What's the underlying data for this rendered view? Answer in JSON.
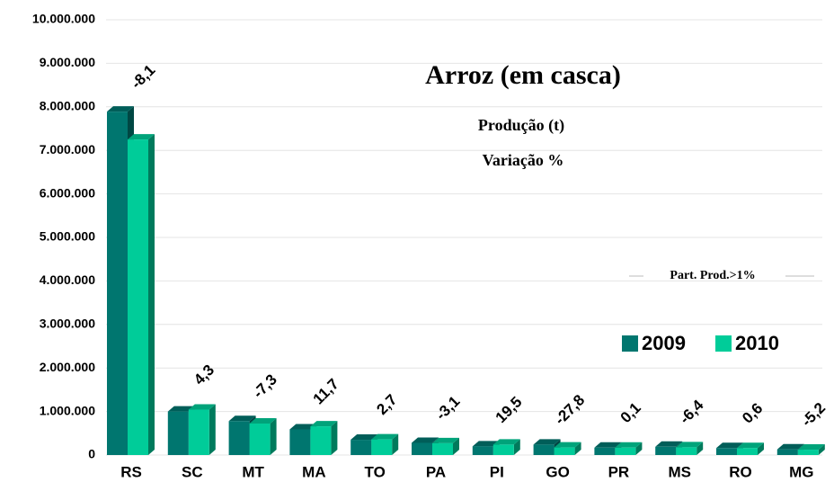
{
  "chart_data": {
    "type": "bar3d",
    "title": "Arroz (em casca)",
    "subtitle": "Produção (t)",
    "subtitle2": "Variação %",
    "annotation": "Part. Prod.>1%",
    "categories": [
      "RS",
      "SC",
      "MT",
      "MA",
      "TO",
      "PA",
      "PI",
      "GO",
      "PR",
      "MS",
      "RO",
      "MG"
    ],
    "series": [
      {
        "name": "2009",
        "color": "#00766f",
        "values": [
          7890000,
          1000000,
          780000,
          590000,
          350000,
          280000,
          200000,
          240000,
          170000,
          190000,
          160000,
          130000
        ]
      },
      {
        "name": "2010",
        "color": "#00cc99",
        "values": [
          7250000,
          1043000,
          723000,
          659000,
          359000,
          271000,
          239000,
          173000,
          170000,
          178000,
          161000,
          123000
        ]
      }
    ],
    "variation": {
      "values": [
        -8.1,
        4.3,
        -7.3,
        11.7,
        2.7,
        -3.1,
        19.5,
        -27.8,
        0.1,
        -6.4,
        0.6,
        -5.2
      ],
      "value_labels": [
        "-8,1",
        "4,3",
        "-7,3",
        "11,7",
        "2,7",
        "-3,1",
        "19,5",
        "-27,8",
        "0,1",
        "-6,4",
        "0,6",
        "-5,2"
      ]
    },
    "ylim": [
      0,
      10000000
    ],
    "yticks": [
      0,
      {
        "value": 1000000,
        "label": "1.000.000"
      },
      {
        "value": 2000000,
        "label": "2.000.000"
      },
      {
        "value": 3000000,
        "label": "3.000.000"
      },
      {
        "value": 4000000,
        "label": "4.000.000"
      },
      {
        "value": 5000000,
        "label": "5.000.000"
      },
      {
        "value": 6000000,
        "label": "6.000.000"
      },
      {
        "value": 7000000,
        "label": "7.000.000"
      },
      {
        "value": 8000000,
        "label": "8.000.000"
      },
      {
        "value": 9000000,
        "label": "9.000.000"
      },
      {
        "value": 10000000,
        "label": "10.000.000"
      }
    ],
    "grid": true
  }
}
